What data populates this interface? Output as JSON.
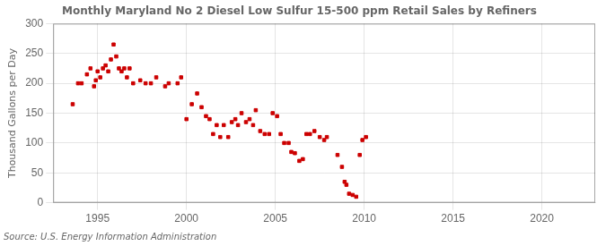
{
  "chart_data": {
    "type": "scatter",
    "title": "Monthly Maryland No 2 Diesel Low Sulfur 15-500 ppm Retail Sales by Refiners",
    "ylabel": "Thousand Gallons per Day",
    "source": "Source: U.S. Energy Information Administration",
    "color": "#cc0000",
    "marker": "square",
    "grid": true,
    "xlim": [
      1992.5,
      2023
    ],
    "ylim": [
      0,
      300
    ],
    "xticks": [
      1995,
      2000,
      2005,
      2010,
      2015,
      2020
    ],
    "yticks": [
      0,
      50,
      100,
      150,
      200,
      250,
      300
    ],
    "x": [
      1993.6,
      1993.9,
      1994.1,
      1994.4,
      1994.6,
      1994.8,
      1994.9,
      1995.0,
      1995.15,
      1995.3,
      1995.45,
      1995.6,
      1995.75,
      1995.9,
      1996.05,
      1996.2,
      1996.35,
      1996.5,
      1996.65,
      1996.8,
      1997.0,
      1997.4,
      1997.7,
      1998.0,
      1998.3,
      1998.8,
      1999.0,
      1999.5,
      1999.7,
      2000.0,
      2000.3,
      2000.6,
      2000.85,
      2001.1,
      2001.3,
      2001.5,
      2001.7,
      2001.9,
      2002.1,
      2002.35,
      2002.55,
      2002.75,
      2002.9,
      2003.1,
      2003.35,
      2003.55,
      2003.75,
      2003.9,
      2004.15,
      2004.4,
      2004.65,
      2004.85,
      2005.1,
      2005.3,
      2005.5,
      2005.75,
      2005.9,
      2006.1,
      2006.35,
      2006.55,
      2006.75,
      2006.95,
      2007.2,
      2007.5,
      2007.75,
      2007.9,
      2008.5,
      2008.75,
      2008.9,
      2009.0,
      2009.15,
      2009.35,
      2009.55,
      2009.75,
      2009.9,
      2010.1
    ],
    "values": [
      165,
      200,
      200,
      215,
      225,
      195,
      205,
      220,
      210,
      225,
      230,
      220,
      240,
      265,
      245,
      225,
      220,
      225,
      210,
      225,
      200,
      205,
      200,
      200,
      210,
      195,
      200,
      200,
      210,
      140,
      165,
      183,
      160,
      145,
      140,
      115,
      130,
      110,
      130,
      110,
      135,
      140,
      130,
      150,
      135,
      140,
      130,
      155,
      120,
      115,
      115,
      150,
      145,
      115,
      100,
      100,
      85,
      83,
      70,
      73,
      115,
      115,
      120,
      110,
      105,
      110,
      80,
      60,
      35,
      30,
      15,
      13,
      10,
      80,
      105,
      110
    ]
  }
}
